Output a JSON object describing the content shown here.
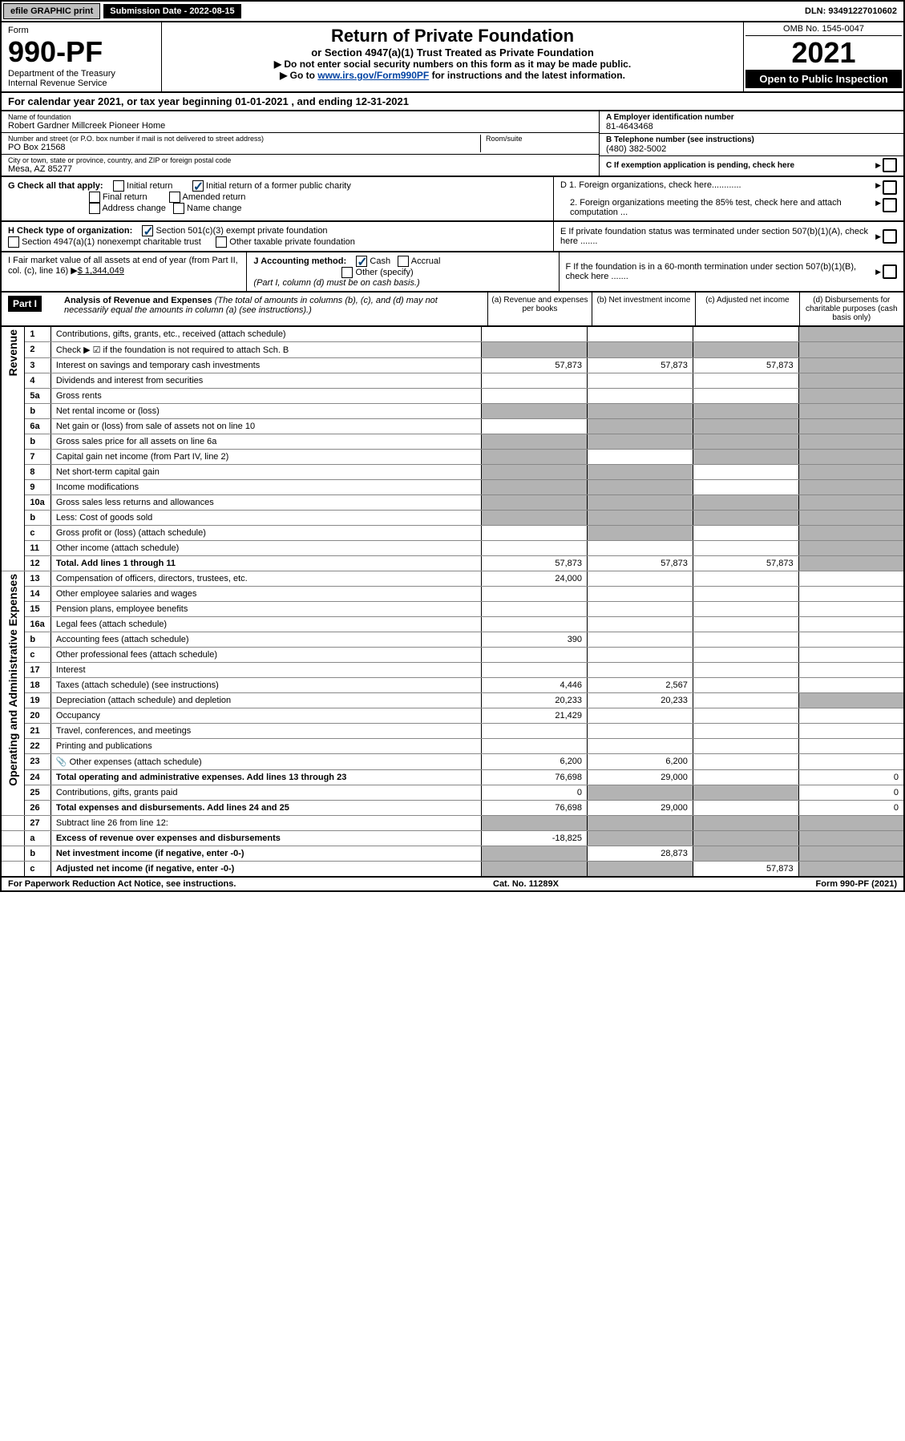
{
  "topbar": {
    "efile": "efile GRAPHIC print",
    "submission_label": "Submission Date - 2022-08-15",
    "dln": "DLN: 93491227010602"
  },
  "header": {
    "form_label": "Form",
    "form_no": "990-PF",
    "dept": "Department of the Treasury",
    "irs": "Internal Revenue Service",
    "title": "Return of Private Foundation",
    "subtitle": "or Section 4947(a)(1) Trust Treated as Private Foundation",
    "instr1": "▶ Do not enter social security numbers on this form as it may be made public.",
    "instr2_prefix": "▶ Go to ",
    "instr2_link": "www.irs.gov/Form990PF",
    "instr2_suffix": " for instructions and the latest information.",
    "omb": "OMB No. 1545-0047",
    "year": "2021",
    "open": "Open to Public Inspection"
  },
  "taxyear": "For calendar year 2021, or tax year beginning 01-01-2021                        , and ending 12-31-2021",
  "entity": {
    "name_label": "Name of foundation",
    "name": "Robert Gardner Millcreek Pioneer Home",
    "addr_label": "Number and street (or P.O. box number if mail is not delivered to street address)",
    "addr": "PO Box 21568",
    "room_label": "Room/suite",
    "city_label": "City or town, state or province, country, and ZIP or foreign postal code",
    "city": "Mesa, AZ  85277",
    "a_label": "A Employer identification number",
    "a_val": "81-4643468",
    "b_label": "B Telephone number (see instructions)",
    "b_val": "(480) 382-5002",
    "c_label": "C If exemption application is pending, check here",
    "d1": "D 1. Foreign organizations, check here............",
    "d2": "2. Foreign organizations meeting the 85% test, check here and attach computation ...",
    "e": "E If private foundation status was terminated under section 507(b)(1)(A), check here .......",
    "f": "F If the foundation is in a 60-month termination under section 507(b)(1)(B), check here ......."
  },
  "g": {
    "label": "G Check all that apply:",
    "initial": "Initial return",
    "final": "Final return",
    "addr_chg": "Address change",
    "initial_former": "Initial return of a former public charity",
    "amended": "Amended return",
    "name_chg": "Name change"
  },
  "h": {
    "label": "H Check type of organization:",
    "s501": "Section 501(c)(3) exempt private foundation",
    "s4947": "Section 4947(a)(1) nonexempt charitable trust",
    "other": "Other taxable private foundation"
  },
  "i": {
    "label": "I Fair market value of all assets at end of year (from Part II, col. (c), line 16)",
    "val": "$  1,344,049"
  },
  "j": {
    "label": "J Accounting method:",
    "cash": "Cash",
    "accrual": "Accrual",
    "other": "Other (specify)",
    "note": "(Part I, column (d) must be on cash basis.)"
  },
  "part1": {
    "header": "Part I",
    "title": "Analysis of Revenue and Expenses",
    "title_note": " (The total of amounts in columns (b), (c), and (d) may not necessarily equal the amounts in column (a) (see instructions).)",
    "col_a": "(a) Revenue and expenses per books",
    "col_b": "(b) Net investment income",
    "col_c": "(c) Adjusted net income",
    "col_d": "(d) Disbursements for charitable purposes (cash basis only)"
  },
  "sections": {
    "revenue": "Revenue",
    "expenses": "Operating and Administrative Expenses"
  },
  "rows": [
    {
      "side": "rev",
      "n": "1",
      "d": "Contributions, gifts, grants, etc., received (attach schedule)",
      "a": "",
      "b": "",
      "c": "",
      "dd": "",
      "sh_d": true
    },
    {
      "side": "rev",
      "n": "2",
      "d": "Check ▶ ☑ if the foundation is not required to attach Sch. B",
      "a": "",
      "b": "",
      "c": "",
      "dd": "",
      "sh_a": true,
      "sh_b": true,
      "sh_c": true,
      "sh_d": true,
      "bold_not": true
    },
    {
      "side": "rev",
      "n": "3",
      "d": "Interest on savings and temporary cash investments",
      "a": "57,873",
      "b": "57,873",
      "c": "57,873",
      "dd": "",
      "sh_d": true
    },
    {
      "side": "rev",
      "n": "4",
      "d": "Dividends and interest from securities",
      "a": "",
      "b": "",
      "c": "",
      "dd": "",
      "sh_d": true
    },
    {
      "side": "rev",
      "n": "5a",
      "d": "Gross rents",
      "a": "",
      "b": "",
      "c": "",
      "dd": "",
      "sh_d": true
    },
    {
      "side": "rev",
      "n": "b",
      "d": "Net rental income or (loss)",
      "a": "",
      "b": "",
      "c": "",
      "dd": "",
      "sh_a": true,
      "sh_b": true,
      "sh_c": true,
      "sh_d": true
    },
    {
      "side": "rev",
      "n": "6a",
      "d": "Net gain or (loss) from sale of assets not on line 10",
      "a": "",
      "b": "",
      "c": "",
      "dd": "",
      "sh_b": true,
      "sh_c": true,
      "sh_d": true
    },
    {
      "side": "rev",
      "n": "b",
      "d": "Gross sales price for all assets on line 6a",
      "a": "",
      "b": "",
      "c": "",
      "dd": "",
      "sh_a": true,
      "sh_b": true,
      "sh_c": true,
      "sh_d": true
    },
    {
      "side": "rev",
      "n": "7",
      "d": "Capital gain net income (from Part IV, line 2)",
      "a": "",
      "b": "",
      "c": "",
      "dd": "",
      "sh_a": true,
      "sh_c": true,
      "sh_d": true
    },
    {
      "side": "rev",
      "n": "8",
      "d": "Net short-term capital gain",
      "a": "",
      "b": "",
      "c": "",
      "dd": "",
      "sh_a": true,
      "sh_b": true,
      "sh_d": true
    },
    {
      "side": "rev",
      "n": "9",
      "d": "Income modifications",
      "a": "",
      "b": "",
      "c": "",
      "dd": "",
      "sh_a": true,
      "sh_b": true,
      "sh_d": true
    },
    {
      "side": "rev",
      "n": "10a",
      "d": "Gross sales less returns and allowances",
      "a": "",
      "b": "",
      "c": "",
      "dd": "",
      "sh_a": true,
      "sh_b": true,
      "sh_c": true,
      "sh_d": true
    },
    {
      "side": "rev",
      "n": "b",
      "d": "Less: Cost of goods sold",
      "a": "",
      "b": "",
      "c": "",
      "dd": "",
      "sh_a": true,
      "sh_b": true,
      "sh_c": true,
      "sh_d": true
    },
    {
      "side": "rev",
      "n": "c",
      "d": "Gross profit or (loss) (attach schedule)",
      "a": "",
      "b": "",
      "c": "",
      "dd": "",
      "sh_b": true,
      "sh_d": true
    },
    {
      "side": "rev",
      "n": "11",
      "d": "Other income (attach schedule)",
      "a": "",
      "b": "",
      "c": "",
      "dd": "",
      "sh_d": true
    },
    {
      "side": "rev",
      "n": "12",
      "d": "Total. Add lines 1 through 11",
      "a": "57,873",
      "b": "57,873",
      "c": "57,873",
      "dd": "",
      "bold": true,
      "sh_d": true
    },
    {
      "side": "exp",
      "n": "13",
      "d": "Compensation of officers, directors, trustees, etc.",
      "a": "24,000",
      "b": "",
      "c": "",
      "dd": ""
    },
    {
      "side": "exp",
      "n": "14",
      "d": "Other employee salaries and wages",
      "a": "",
      "b": "",
      "c": "",
      "dd": ""
    },
    {
      "side": "exp",
      "n": "15",
      "d": "Pension plans, employee benefits",
      "a": "",
      "b": "",
      "c": "",
      "dd": ""
    },
    {
      "side": "exp",
      "n": "16a",
      "d": "Legal fees (attach schedule)",
      "a": "",
      "b": "",
      "c": "",
      "dd": ""
    },
    {
      "side": "exp",
      "n": "b",
      "d": "Accounting fees (attach schedule)",
      "a": "390",
      "b": "",
      "c": "",
      "dd": ""
    },
    {
      "side": "exp",
      "n": "c",
      "d": "Other professional fees (attach schedule)",
      "a": "",
      "b": "",
      "c": "",
      "dd": ""
    },
    {
      "side": "exp",
      "n": "17",
      "d": "Interest",
      "a": "",
      "b": "",
      "c": "",
      "dd": ""
    },
    {
      "side": "exp",
      "n": "18",
      "d": "Taxes (attach schedule) (see instructions)",
      "a": "4,446",
      "b": "2,567",
      "c": "",
      "dd": ""
    },
    {
      "side": "exp",
      "n": "19",
      "d": "Depreciation (attach schedule) and depletion",
      "a": "20,233",
      "b": "20,233",
      "c": "",
      "dd": "",
      "sh_d": true
    },
    {
      "side": "exp",
      "n": "20",
      "d": "Occupancy",
      "a": "21,429",
      "b": "",
      "c": "",
      "dd": ""
    },
    {
      "side": "exp",
      "n": "21",
      "d": "Travel, conferences, and meetings",
      "a": "",
      "b": "",
      "c": "",
      "dd": ""
    },
    {
      "side": "exp",
      "n": "22",
      "d": "Printing and publications",
      "a": "",
      "b": "",
      "c": "",
      "dd": ""
    },
    {
      "side": "exp",
      "n": "23",
      "d": "Other expenses (attach schedule)",
      "a": "6,200",
      "b": "6,200",
      "c": "",
      "dd": "",
      "icon": true
    },
    {
      "side": "exp",
      "n": "24",
      "d": "Total operating and administrative expenses. Add lines 13 through 23",
      "a": "76,698",
      "b": "29,000",
      "c": "",
      "dd": "0",
      "bold": true
    },
    {
      "side": "exp",
      "n": "25",
      "d": "Contributions, gifts, grants paid",
      "a": "0",
      "b": "",
      "c": "",
      "dd": "0",
      "sh_b": true,
      "sh_c": true
    },
    {
      "side": "exp",
      "n": "26",
      "d": "Total expenses and disbursements. Add lines 24 and 25",
      "a": "76,698",
      "b": "29,000",
      "c": "",
      "dd": "0",
      "bold": true
    },
    {
      "side": "",
      "n": "27",
      "d": "Subtract line 26 from line 12:",
      "a": "",
      "b": "",
      "c": "",
      "dd": "",
      "sh_a": true,
      "sh_b": true,
      "sh_c": true,
      "sh_d": true
    },
    {
      "side": "",
      "n": "a",
      "d": "Excess of revenue over expenses and disbursements",
      "a": "-18,825",
      "b": "",
      "c": "",
      "dd": "",
      "bold": true,
      "sh_b": true,
      "sh_c": true,
      "sh_d": true
    },
    {
      "side": "",
      "n": "b",
      "d": "Net investment income (if negative, enter -0-)",
      "a": "",
      "b": "28,873",
      "c": "",
      "dd": "",
      "bold": true,
      "sh_a": true,
      "sh_c": true,
      "sh_d": true
    },
    {
      "side": "",
      "n": "c",
      "d": "Adjusted net income (if negative, enter -0-)",
      "a": "",
      "b": "",
      "c": "57,873",
      "dd": "",
      "bold": true,
      "sh_a": true,
      "sh_b": true,
      "sh_d": true
    }
  ],
  "footer": {
    "left": "For Paperwork Reduction Act Notice, see instructions.",
    "mid": "Cat. No. 11289X",
    "right": "Form 990-PF (2021)"
  },
  "colors": {
    "header_bg": "#000000",
    "link": "#0043a3",
    "shade": "#b3b3b3"
  }
}
